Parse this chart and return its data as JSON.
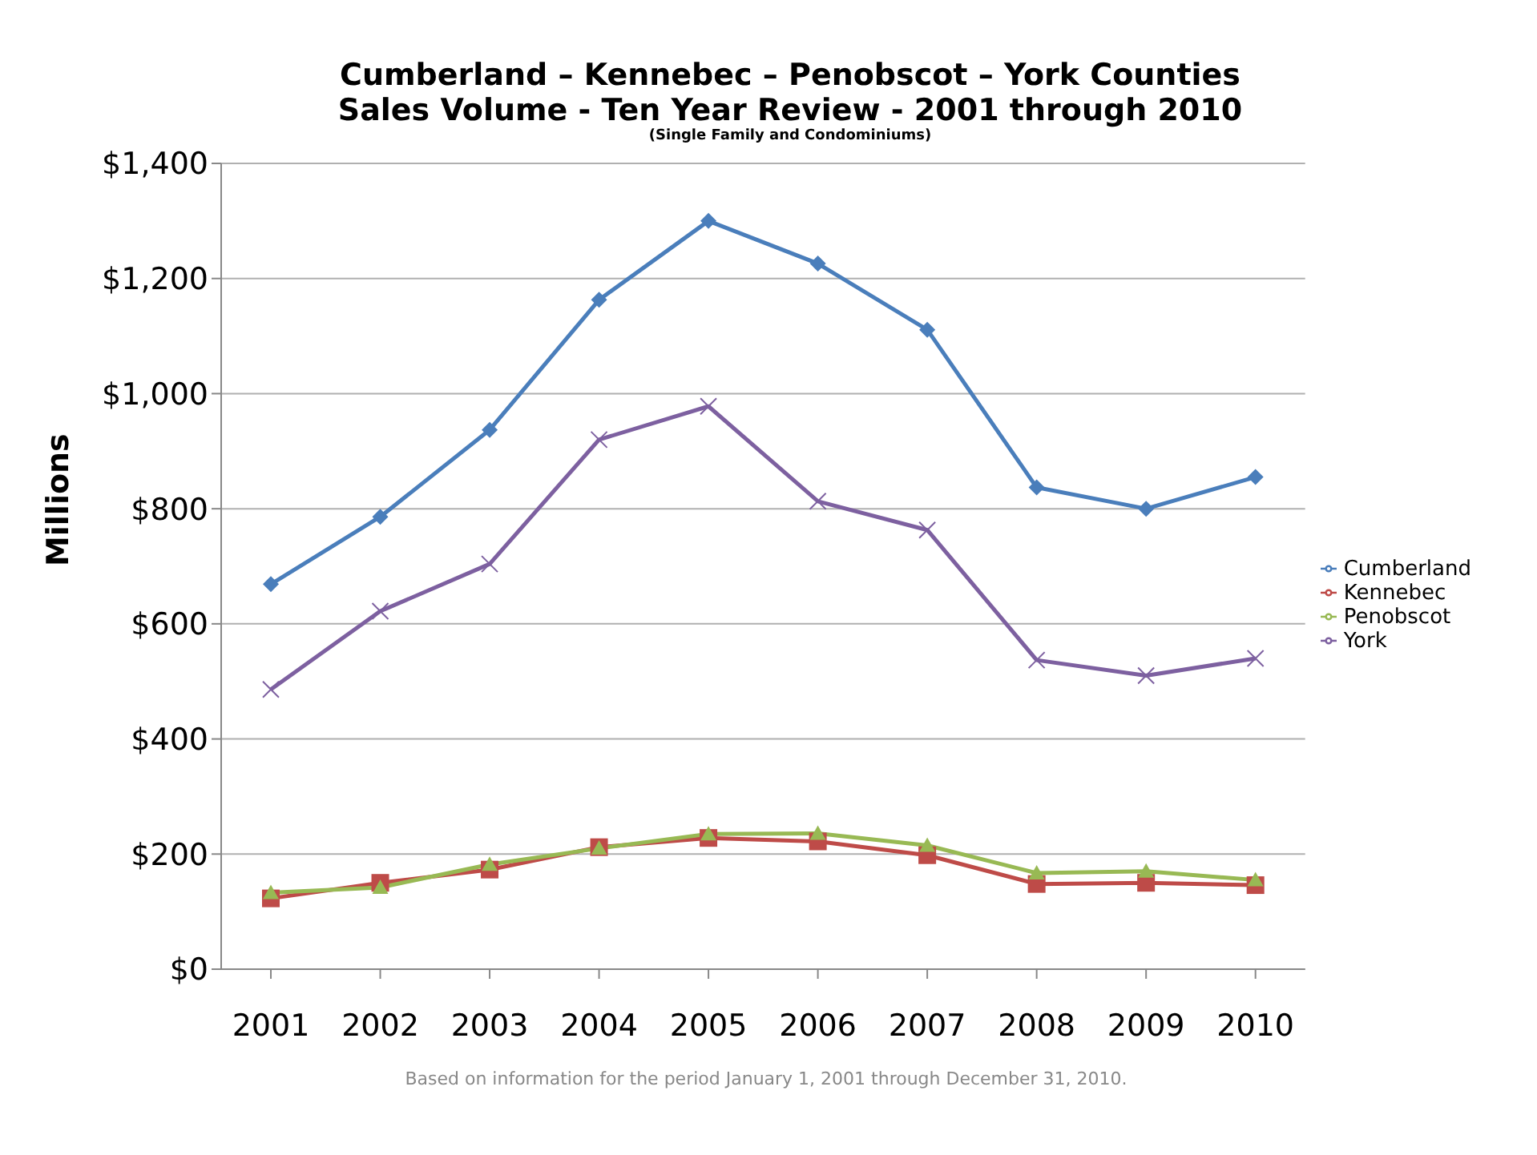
{
  "chart_data": {
    "type": "line",
    "title": "Cumberland – Kennebec – Penobscot – York Counties",
    "subtitle": "Sales Volume - Ten Year Review - 2001 through 2010",
    "annotations": [
      "(Single Family and Condominiums)",
      "Based on information for the period January 1, 2001 through December 31, 2010."
    ],
    "ylabel": "Millions",
    "categories": [
      "2001",
      "2002",
      "2003",
      "2004",
      "2005",
      "2006",
      "2007",
      "2008",
      "2009",
      "2010"
    ],
    "series": [
      {
        "name": "Cumberland",
        "color": "#4a7ebb",
        "marker": "diamond",
        "values": [
          669,
          786,
          937,
          1163,
          1300,
          1226,
          1111,
          837,
          800,
          855
        ]
      },
      {
        "name": "Kennebec",
        "color": "#be4b48",
        "marker": "square",
        "values": [
          123,
          150,
          173,
          212,
          228,
          222,
          198,
          148,
          150,
          146
        ]
      },
      {
        "name": "Penobscot",
        "color": "#98b954",
        "marker": "triangle",
        "values": [
          133,
          142,
          182,
          210,
          235,
          236,
          215,
          167,
          170,
          155
        ]
      },
      {
        "name": "York",
        "color": "#7d60a0",
        "marker": "cross",
        "values": [
          486,
          622,
          704,
          920,
          978,
          813,
          763,
          537,
          510,
          540
        ]
      }
    ],
    "ylim": [
      0,
      1400
    ],
    "yticks": [
      {
        "value": 0,
        "label": "$0"
      },
      {
        "value": 200,
        "label": "$200"
      },
      {
        "value": 400,
        "label": "$400"
      },
      {
        "value": 600,
        "label": "$600"
      },
      {
        "value": 800,
        "label": "$800"
      },
      {
        "value": 1000,
        "label": "$1,000"
      },
      {
        "value": 1200,
        "label": "$1,200"
      },
      {
        "value": 1400,
        "label": "$1,400"
      }
    ],
    "grid": "y",
    "legend": "right",
    "line_style": "solid"
  }
}
